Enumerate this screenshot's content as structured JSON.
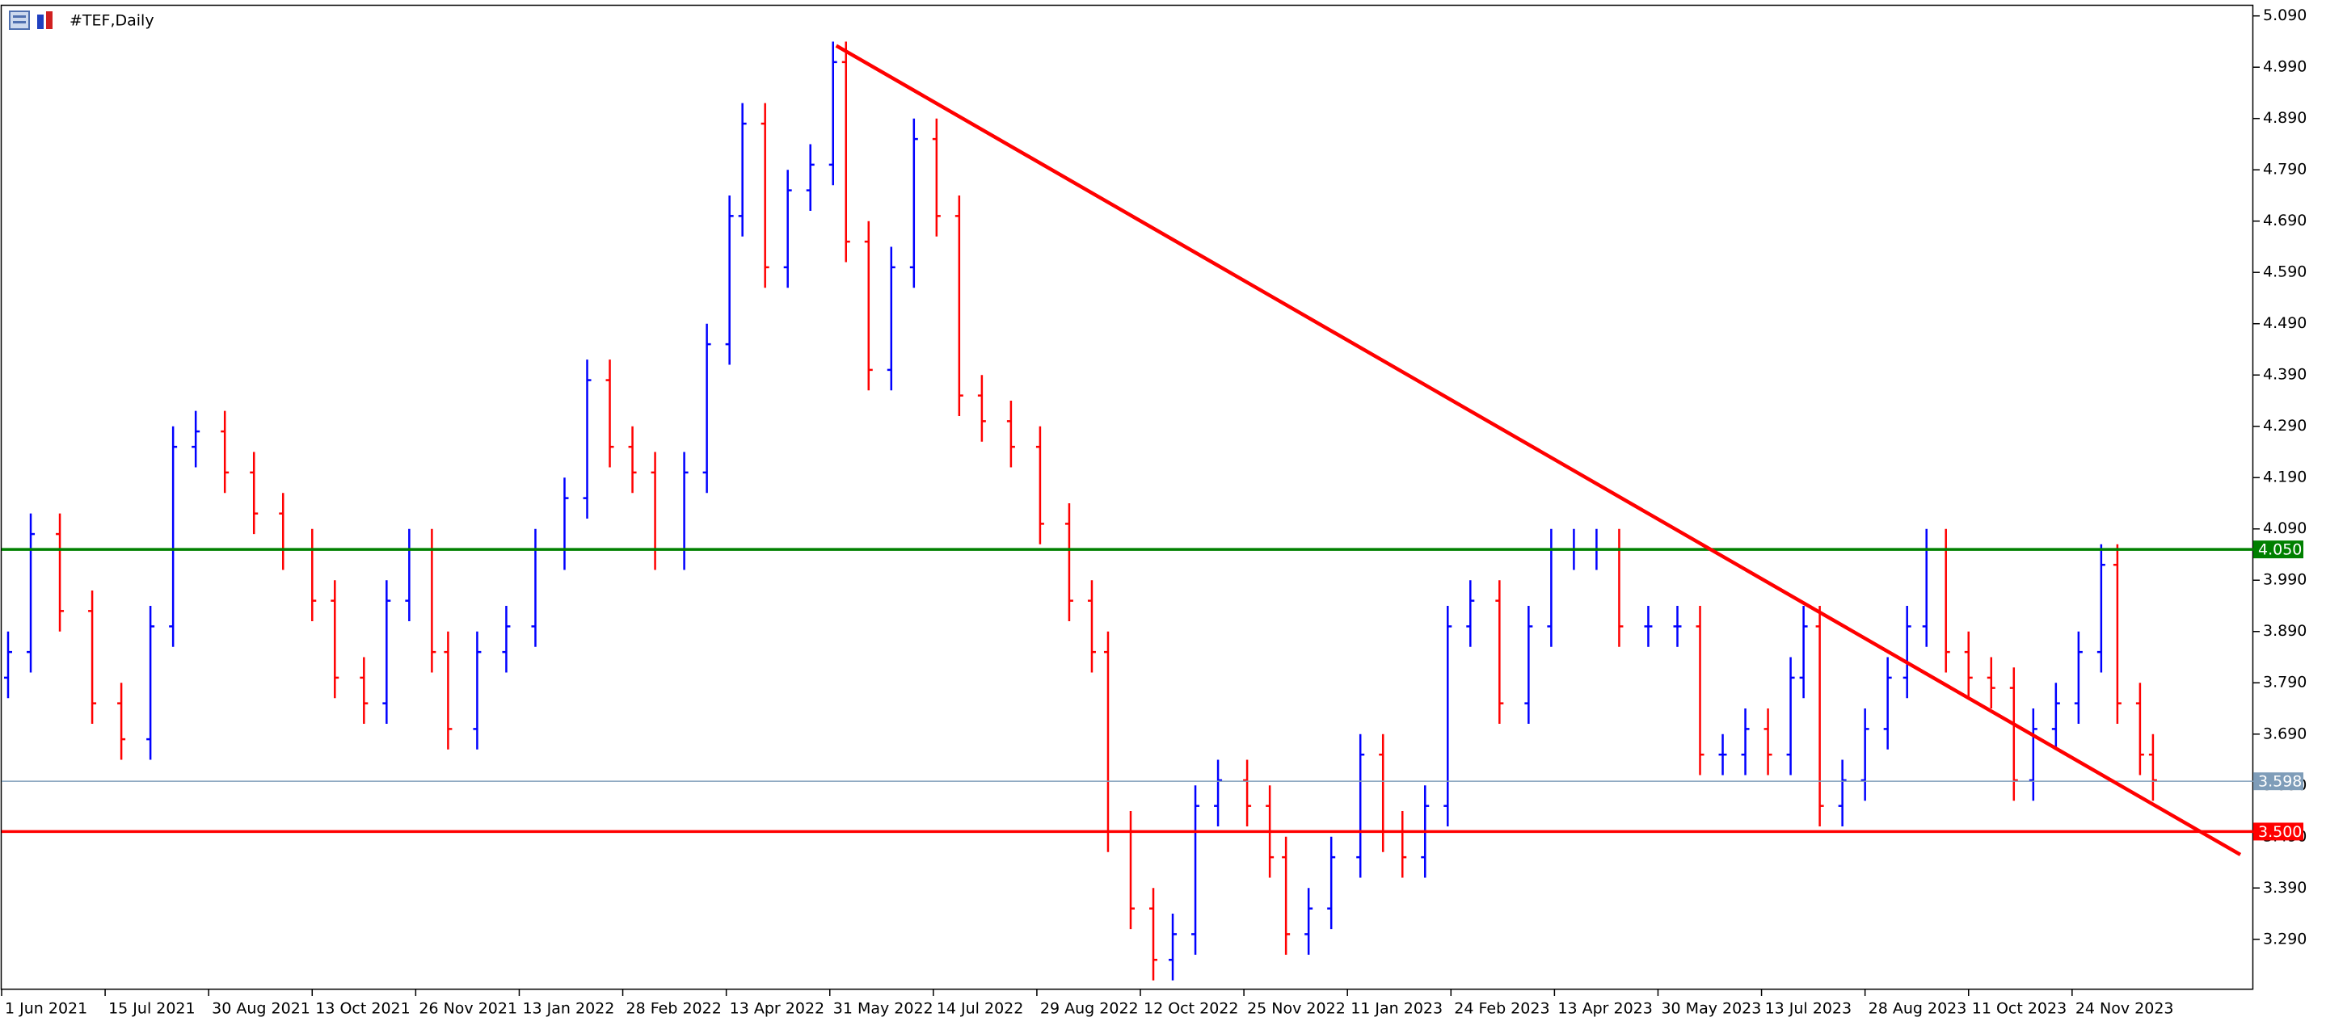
{
  "chart_data": {
    "type": "ohlc",
    "title": "#TEF,Daily",
    "x": [
      2,
      9,
      18,
      28,
      37,
      46,
      53,
      60,
      69,
      78,
      87,
      96,
      103,
      112,
      119,
      126,
      133,
      138,
      147,
      156,
      165,
      174,
      181,
      188,
      195,
      202,
      211,
      218,
      225,
      229,
      236,
      243,
      250,
      257,
      261,
      268,
      275,
      282,
      289,
      296,
      303,
      312,
      321,
      330,
      337,
      342,
      349,
      356,
      362,
      369,
      376,
      385,
      392,
      397,
      404,
      411,
      420,
      427,
      433,
      440,
      447,
      454,
      463,
      472,
      479,
      486,
      493,
      500,
      509,
      518,
      525,
      532,
      539,
      546,
      553,
      557,
      562,
      569,
      576,
      583,
      589,
      595,
      601,
      608,
      615,
      622,
      628,
      635,
      642,
      649,
      654,
      661,
      665
    ],
    "open": [
      3.8,
      3.85,
      4.08,
      3.93,
      3.75,
      3.68,
      3.9,
      4.25,
      4.28,
      4.2,
      4.12,
      4.05,
      3.95,
      3.8,
      3.75,
      3.95,
      4.05,
      3.85,
      3.7,
      3.85,
      3.9,
      4.05,
      4.15,
      4.38,
      4.25,
      4.2,
      4.05,
      4.2,
      4.45,
      4.7,
      4.88,
      4.6,
      4.75,
      4.8,
      5.0,
      4.65,
      4.4,
      4.6,
      4.85,
      4.7,
      4.35,
      4.3,
      4.25,
      4.1,
      3.95,
      3.85,
      3.5,
      3.35,
      3.25,
      3.3,
      3.55,
      3.6,
      3.55,
      3.45,
      3.3,
      3.35,
      3.45,
      3.65,
      3.5,
      3.45,
      3.55,
      3.9,
      3.95,
      3.75,
      3.9,
      4.05,
      4.05,
      4.05,
      3.9,
      3.9,
      3.9,
      3.65,
      3.65,
      3.7,
      3.65,
      3.8,
      3.9,
      3.55,
      3.6,
      3.7,
      3.8,
      3.9,
      4.05,
      3.85,
      3.8,
      3.78,
      3.6,
      3.7,
      3.75,
      3.85,
      4.02,
      3.75,
      3.65
    ],
    "high": [
      3.89,
      4.12,
      4.12,
      3.97,
      3.79,
      3.94,
      4.29,
      4.32,
      4.32,
      4.24,
      4.16,
      4.09,
      3.99,
      3.84,
      3.99,
      4.09,
      4.09,
      3.89,
      3.89,
      3.94,
      4.09,
      4.19,
      4.42,
      4.42,
      4.29,
      4.24,
      4.24,
      4.49,
      4.74,
      4.92,
      4.92,
      4.79,
      4.84,
      5.04,
      5.04,
      4.69,
      4.64,
      4.89,
      4.89,
      4.74,
      4.39,
      4.34,
      4.29,
      4.14,
      3.99,
      3.89,
      3.54,
      3.39,
      3.34,
      3.59,
      3.64,
      3.64,
      3.59,
      3.49,
      3.39,
      3.49,
      3.69,
      3.69,
      3.54,
      3.59,
      3.94,
      3.99,
      3.99,
      3.94,
      4.09,
      4.09,
      4.09,
      4.09,
      3.94,
      3.94,
      3.94,
      3.69,
      3.74,
      3.74,
      3.84,
      3.94,
      3.94,
      3.64,
      3.74,
      3.84,
      3.94,
      4.09,
      4.09,
      3.89,
      3.84,
      3.82,
      3.74,
      3.79,
      3.89,
      4.06,
      4.06,
      3.79,
      3.69
    ],
    "low": [
      3.76,
      3.81,
      3.89,
      3.71,
      3.64,
      3.64,
      3.86,
      4.21,
      4.16,
      4.08,
      4.01,
      3.91,
      3.76,
      3.71,
      3.71,
      3.91,
      3.81,
      3.66,
      3.66,
      3.81,
      3.86,
      4.01,
      4.11,
      4.21,
      4.16,
      4.01,
      4.01,
      4.16,
      4.41,
      4.66,
      4.56,
      4.56,
      4.71,
      4.76,
      4.61,
      4.36,
      4.36,
      4.56,
      4.66,
      4.31,
      4.26,
      4.21,
      4.06,
      3.91,
      3.81,
      3.46,
      3.31,
      3.21,
      3.21,
      3.26,
      3.51,
      3.51,
      3.41,
      3.26,
      3.26,
      3.31,
      3.41,
      3.46,
      3.41,
      3.41,
      3.51,
      3.86,
      3.71,
      3.71,
      3.86,
      4.01,
      4.01,
      3.86,
      3.86,
      3.86,
      3.61,
      3.61,
      3.61,
      3.61,
      3.61,
      3.76,
      3.51,
      3.51,
      3.56,
      3.66,
      3.76,
      3.86,
      3.81,
      3.76,
      3.74,
      3.56,
      3.56,
      3.66,
      3.71,
      3.81,
      3.71,
      3.61,
      3.56
    ],
    "close": [
      3.85,
      4.08,
      3.93,
      3.75,
      3.68,
      3.9,
      4.25,
      4.28,
      4.2,
      4.12,
      4.05,
      3.95,
      3.8,
      3.75,
      3.95,
      4.05,
      3.85,
      3.7,
      3.85,
      3.9,
      4.05,
      4.15,
      4.38,
      4.25,
      4.2,
      4.05,
      4.2,
      4.45,
      4.7,
      4.88,
      4.6,
      4.75,
      4.8,
      5.0,
      4.65,
      4.4,
      4.6,
      4.85,
      4.7,
      4.35,
      4.3,
      4.25,
      4.1,
      3.95,
      3.85,
      3.5,
      3.35,
      3.25,
      3.3,
      3.55,
      3.6,
      3.55,
      3.45,
      3.3,
      3.35,
      3.45,
      3.65,
      3.5,
      3.45,
      3.55,
      3.9,
      3.95,
      3.75,
      3.9,
      4.05,
      4.05,
      4.05,
      3.9,
      3.9,
      3.9,
      3.65,
      3.65,
      3.7,
      3.65,
      3.8,
      3.9,
      3.55,
      3.6,
      3.7,
      3.8,
      3.9,
      4.05,
      3.85,
      3.8,
      3.78,
      3.6,
      3.7,
      3.75,
      3.85,
      4.02,
      3.75,
      3.65,
      3.6
    ],
    "up_color": "#0000ff",
    "down_color": "#ff0000",
    "xlim": [
      0,
      696
    ],
    "ylim": [
      3.192,
      5.11
    ],
    "xticks": [
      {
        "value": 0,
        "label": "1 Jun 2021"
      },
      {
        "value": 32,
        "label": "15 Jul 2021"
      },
      {
        "value": 64,
        "label": "30 Aug 2021"
      },
      {
        "value": 96,
        "label": "13 Oct 2021"
      },
      {
        "value": 128,
        "label": "26 Nov 2021"
      },
      {
        "value": 160,
        "label": "13 Jan 2022"
      },
      {
        "value": 192,
        "label": "28 Feb 2022"
      },
      {
        "value": 224,
        "label": "13 Apr 2022"
      },
      {
        "value": 256,
        "label": "31 May 2022"
      },
      {
        "value": 288,
        "label": "14 Jul 2022"
      },
      {
        "value": 320,
        "label": "29 Aug 2022"
      },
      {
        "value": 352,
        "label": "12 Oct 2022"
      },
      {
        "value": 384,
        "label": "25 Nov 2022"
      },
      {
        "value": 416,
        "label": "11 Jan 2023"
      },
      {
        "value": 448,
        "label": "24 Feb 2023"
      },
      {
        "value": 480,
        "label": "13 Apr 2023"
      },
      {
        "value": 512,
        "label": "30 May 2023"
      },
      {
        "value": 544,
        "label": "13 Jul 2023"
      },
      {
        "value": 576,
        "label": "28 Aug 2023"
      },
      {
        "value": 608,
        "label": "11 Oct 2023"
      },
      {
        "value": 640,
        "label": "24 Nov 2023"
      }
    ],
    "yticks": [
      {
        "value": 5.09,
        "label": "5.090"
      },
      {
        "value": 4.99,
        "label": "4.990"
      },
      {
        "value": 4.89,
        "label": "4.890"
      },
      {
        "value": 4.79,
        "label": "4.790"
      },
      {
        "value": 4.69,
        "label": "4.690"
      },
      {
        "value": 4.59,
        "label": "4.590"
      },
      {
        "value": 4.49,
        "label": "4.490"
      },
      {
        "value": 4.39,
        "label": "4.390"
      },
      {
        "value": 4.29,
        "label": "4.290"
      },
      {
        "value": 4.19,
        "label": "4.190"
      },
      {
        "value": 4.09,
        "label": "4.090"
      },
      {
        "value": 3.99,
        "label": "3.990"
      },
      {
        "value": 3.89,
        "label": "3.890"
      },
      {
        "value": 3.79,
        "label": "3.790"
      },
      {
        "value": 3.69,
        "label": "3.690"
      },
      {
        "value": 3.59,
        "label": "3.590"
      },
      {
        "value": 3.49,
        "label": "3.490"
      },
      {
        "value": 3.39,
        "label": "3.390"
      },
      {
        "value": 3.29,
        "label": "3.290"
      }
    ],
    "levels": [
      {
        "value": 4.05,
        "label": "4.050",
        "color": "#008000"
      },
      {
        "value": 3.598,
        "label": "3.598",
        "color": "#7f9db9"
      },
      {
        "value": 3.5,
        "label": "3.500",
        "color": "#ff0000"
      }
    ],
    "trendline": {
      "x": [
        258,
        692
      ],
      "y": [
        5.032,
        3.455
      ],
      "color": "#ff0000"
    }
  }
}
